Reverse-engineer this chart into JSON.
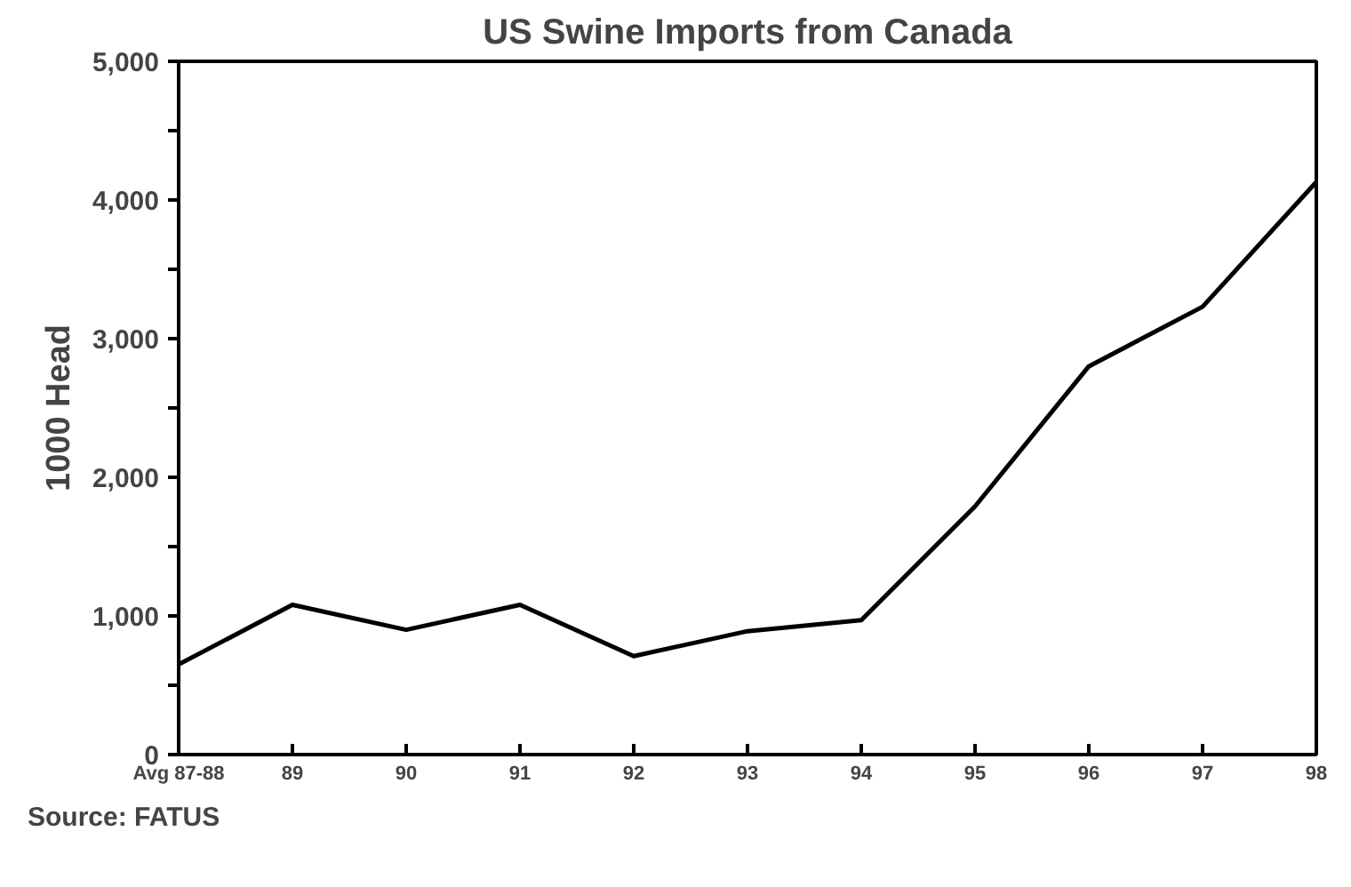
{
  "chart_data": {
    "type": "line",
    "title": "US Swine Imports from Canada",
    "ylabel": "1000 Head",
    "categories": [
      "Avg 87-88",
      "89",
      "90",
      "91",
      "92",
      "93",
      "94",
      "95",
      "96",
      "97",
      "98"
    ],
    "series": [
      {
        "color": "#000000",
        "values": [
          650,
          1080,
          900,
          1080,
          710,
          890,
          970,
          1790,
          2800,
          3230,
          4130
        ]
      }
    ],
    "ylim": [
      0,
      5000
    ],
    "yticks": [
      {
        "value": 0,
        "label": "0"
      },
      {
        "value": 500,
        "label": null
      },
      {
        "value": 1000,
        "label": "1,000"
      },
      {
        "value": 1500,
        "label": null
      },
      {
        "value": 2000,
        "label": "2,000"
      },
      {
        "value": 2500,
        "label": null
      },
      {
        "value": 3000,
        "label": "3,000"
      },
      {
        "value": 3500,
        "label": null
      },
      {
        "value": 4000,
        "label": "4,000"
      },
      {
        "value": 4500,
        "label": null
      },
      {
        "value": 5000,
        "label": "5,000"
      }
    ],
    "grid": false,
    "marker": "none",
    "line_style": "solid",
    "annotations": [
      "Source: FATUS"
    ]
  }
}
